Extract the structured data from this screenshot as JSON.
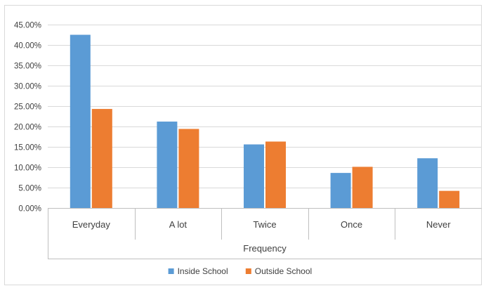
{
  "chart_data": {
    "type": "bar",
    "title": "",
    "xlabel": "Frequency",
    "ylabel": "",
    "categories": [
      "Everyday",
      "A lot",
      "Twice",
      "Once",
      "Never"
    ],
    "y_ticks": [
      "0.00%",
      "5.00%",
      "10.00%",
      "15.00%",
      "20.00%",
      "25.00%",
      "30.00%",
      "35.00%",
      "40.00%",
      "45.00%"
    ],
    "ylim": [
      0,
      45
    ],
    "series": [
      {
        "name": "Inside School",
        "color": "#5b9bd5",
        "values": [
          42.5,
          21.2,
          15.6,
          8.6,
          12.2
        ]
      },
      {
        "name": "Outside School",
        "color": "#ed7d31",
        "values": [
          24.3,
          19.4,
          16.3,
          10.1,
          4.2
        ]
      }
    ],
    "legend": {
      "placement": "bottom"
    },
    "grid": true,
    "colors": {
      "gridline": "#d9d9d9",
      "axis": "#bfbfbf",
      "text": "#404040"
    }
  }
}
